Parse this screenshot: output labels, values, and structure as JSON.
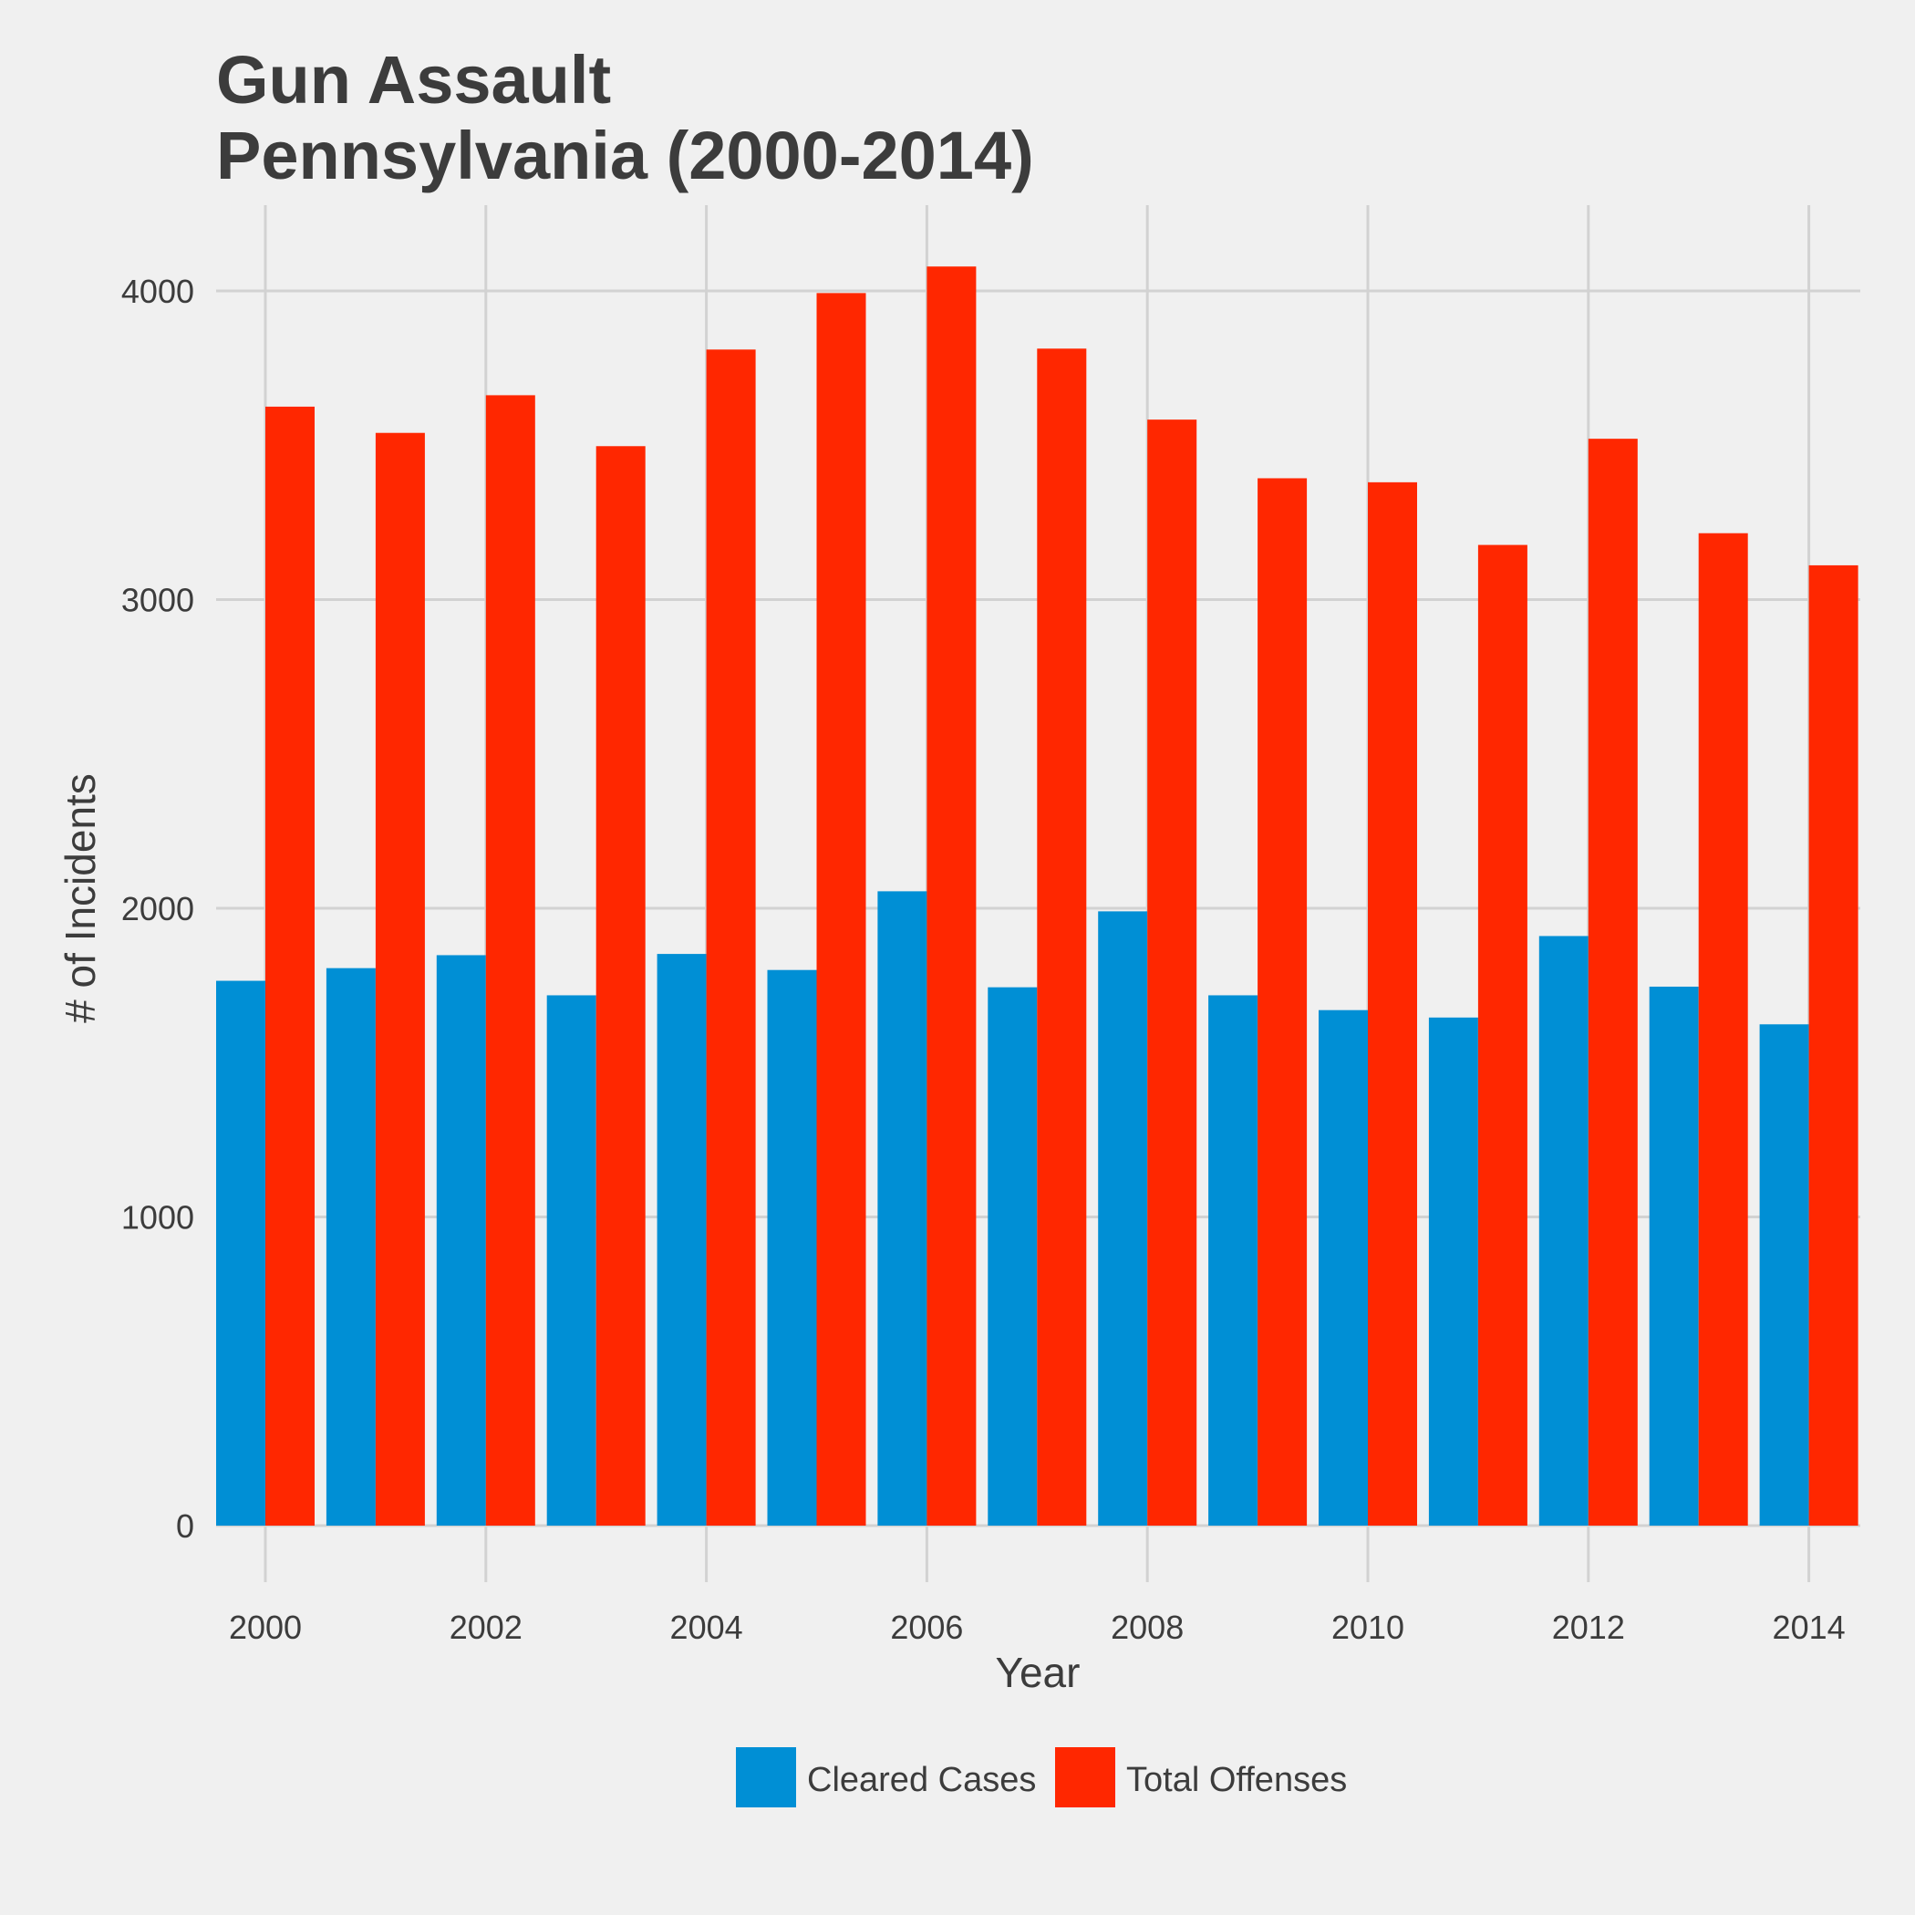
{
  "chart_data": {
    "type": "bar",
    "title": [
      "Gun Assault",
      "Pennsylvania (2000-2014)"
    ],
    "xlabel": "Year",
    "ylabel": "# of Incidents",
    "categories": [
      "2000",
      "2001",
      "2002",
      "2003",
      "2004",
      "2005",
      "2006",
      "2007",
      "2008",
      "2009",
      "2010",
      "2011",
      "2012",
      "2013",
      "2014"
    ],
    "x_tick_labels": [
      "2000",
      "2002",
      "2004",
      "2006",
      "2008",
      "2010",
      "2012",
      "2014"
    ],
    "y_tick_labels": [
      "0",
      "1000",
      "2000",
      "3000",
      "4000"
    ],
    "ylim": [
      -170,
      4280
    ],
    "grid": true,
    "legend_position": "bottom",
    "series": [
      {
        "name": "Cleared Cases",
        "color": "#008FD5",
        "values": [
          1765,
          1806,
          1848,
          1718,
          1852,
          1800,
          2055,
          1744,
          1990,
          1718,
          1670,
          1646,
          1910,
          1746,
          1624
        ]
      },
      {
        "name": "Total Offenses",
        "color": "#FF2700",
        "values": [
          3625,
          3540,
          3662,
          3497,
          3810,
          3993,
          4079,
          3813,
          3583,
          3393,
          3380,
          3177,
          3521,
          3215,
          3111
        ]
      }
    ]
  }
}
